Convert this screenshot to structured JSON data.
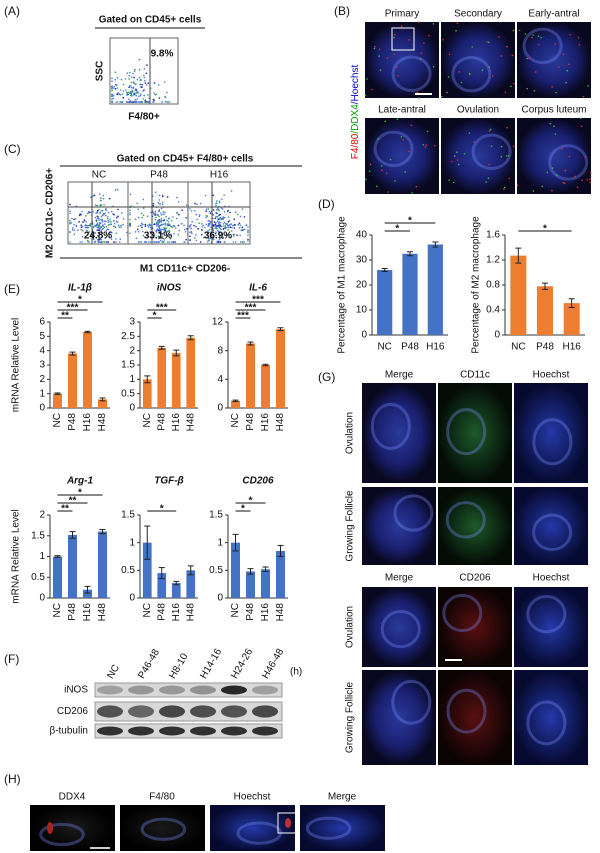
{
  "panel_labels": [
    "(A)",
    "(B)",
    "(C)",
    "(D)",
    "(E)",
    "(F)",
    "(G)",
    "(H)"
  ],
  "panel_a": {
    "title": "Gated on CD45+ cells",
    "gate_percent": "9.8%",
    "y_axis": "SSC",
    "x_axis": "F4/80+"
  },
  "panel_b": {
    "stain": [
      "F4/80",
      "/DDX4",
      "/Hoechst"
    ],
    "stages": [
      "Primary",
      "Secondary",
      "Early-antral",
      "Late-antral",
      "Ovulation",
      "Corpus luteum"
    ]
  },
  "panel_c": {
    "title": "Gated on CD45+ F4/80+ cells",
    "groups": [
      "NC",
      "P48",
      "H16"
    ],
    "percents": [
      "24.8%",
      "33.1%",
      "36.9%"
    ],
    "y_axis": "M2 CD11c- CD206+",
    "x_axis": "M1 CD11c+ CD206-"
  },
  "panel_f": {
    "lanes": [
      "NC",
      "P46-48",
      "H8-10",
      "H14-16",
      "H24-26",
      "H46-48"
    ],
    "unit": "(h)",
    "rows": [
      "iNOS",
      "CD206",
      "β-tubulin"
    ]
  },
  "panel_g": {
    "top_columns": [
      "Merge",
      "CD11c",
      "Hoechst"
    ],
    "bottom_columns": [
      "Merge",
      "CD206",
      "Hoechst"
    ],
    "rows": [
      "Ovulation",
      "Growing Follicle"
    ]
  },
  "panel_h": {
    "columns": [
      "DDX4",
      "F4/80",
      "Hoechst",
      "Merge"
    ]
  },
  "chart_data": [
    {
      "type": "bar",
      "y_label": "Percentage of M1 macrophage",
      "categories": [
        "NC",
        "P48",
        "H16"
      ],
      "values": [
        26,
        32.5,
        36.2
      ],
      "errors": [
        0.6,
        0.8,
        1
      ],
      "color": "#4472c4",
      "ylim": [
        0,
        40
      ],
      "yticks": [
        0,
        10,
        20,
        30,
        40
      ],
      "annotations": [
        "*",
        "*"
      ]
    },
    {
      "type": "bar",
      "y_label": "Percentage of M2 macrophage",
      "categories": [
        "NC",
        "P48",
        "H16"
      ],
      "values": [
        1.27,
        0.78,
        0.51
      ],
      "errors": [
        0.12,
        0.05,
        0.07
      ],
      "color": "#ed7d31",
      "ylim": [
        0,
        1.6
      ],
      "yticks": [
        0,
        0.4,
        0.8,
        1.2,
        1.6
      ],
      "annotations": [
        "*"
      ]
    },
    {
      "type": "bar",
      "title": "IL-1β",
      "y_label": "mRNA Relative Level",
      "categories": [
        "NC",
        "P48",
        "H16",
        "H48"
      ],
      "values": [
        1,
        3.8,
        5.3,
        0.6
      ],
      "errors": [
        0.05,
        0.1,
        0.05,
        0.1
      ],
      "color": "#ed7d31",
      "ylim": [
        0,
        6
      ],
      "yticks": [
        0,
        1,
        2,
        3,
        4,
        5,
        6
      ],
      "annotations": [
        "**",
        "***",
        "*"
      ]
    },
    {
      "type": "bar",
      "title": "iNOS",
      "categories": [
        "NC",
        "P48",
        "H16",
        "H48"
      ],
      "values": [
        1,
        2.1,
        1.92,
        2.45
      ],
      "errors": [
        0.12,
        0.05,
        0.1,
        0.07
      ],
      "color": "#ed7d31",
      "ylim": [
        0,
        3
      ],
      "yticks": [
        0,
        0.5,
        1,
        1.5,
        2,
        2.5,
        3
      ],
      "annotations": [
        "*",
        "***"
      ]
    },
    {
      "type": "bar",
      "title": "IL-6",
      "categories": [
        "NC",
        "P48",
        "H16",
        "H48"
      ],
      "values": [
        1,
        9,
        6,
        11
      ],
      "errors": [
        0.1,
        0.2,
        0.1,
        0.2
      ],
      "color": "#ed7d31",
      "ylim": [
        0,
        12
      ],
      "yticks": [
        0,
        4,
        8,
        12
      ],
      "annotations": [
        "***",
        "***",
        "***"
      ]
    },
    {
      "type": "bar",
      "title": "Arg-1",
      "y_label": "mRNA Relative Level",
      "categories": [
        "NC",
        "P48",
        "H16",
        "H48"
      ],
      "values": [
        1,
        1.52,
        0.2,
        1.6
      ],
      "errors": [
        0.02,
        0.08,
        0.08,
        0.05
      ],
      "color": "#4472c4",
      "ylim": [
        0,
        2
      ],
      "yticks": [
        0,
        0.5,
        1,
        1.5,
        2
      ],
      "annotations": [
        "**",
        "**",
        "*"
      ]
    },
    {
      "type": "bar",
      "title": "TGF-β",
      "categories": [
        "NC",
        "P48",
        "H16",
        "H48"
      ],
      "values": [
        1,
        0.45,
        0.27,
        0.5
      ],
      "errors": [
        0.3,
        0.1,
        0.03,
        0.08
      ],
      "color": "#4472c4",
      "ylim": [
        0,
        1.5
      ],
      "yticks": [
        0,
        0.5,
        1,
        1.5
      ],
      "annotations": [
        "*"
      ]
    },
    {
      "type": "bar",
      "title": "CD206",
      "categories": [
        "NC",
        "P48",
        "H16",
        "H48"
      ],
      "values": [
        1,
        0.48,
        0.52,
        0.85
      ],
      "errors": [
        0.15,
        0.05,
        0.04,
        0.1
      ],
      "color": "#4472c4",
      "ylim": [
        0,
        1.5
      ],
      "yticks": [
        0,
        0.5,
        1,
        1.5
      ],
      "annotations": [
        "*",
        "*"
      ]
    }
  ]
}
